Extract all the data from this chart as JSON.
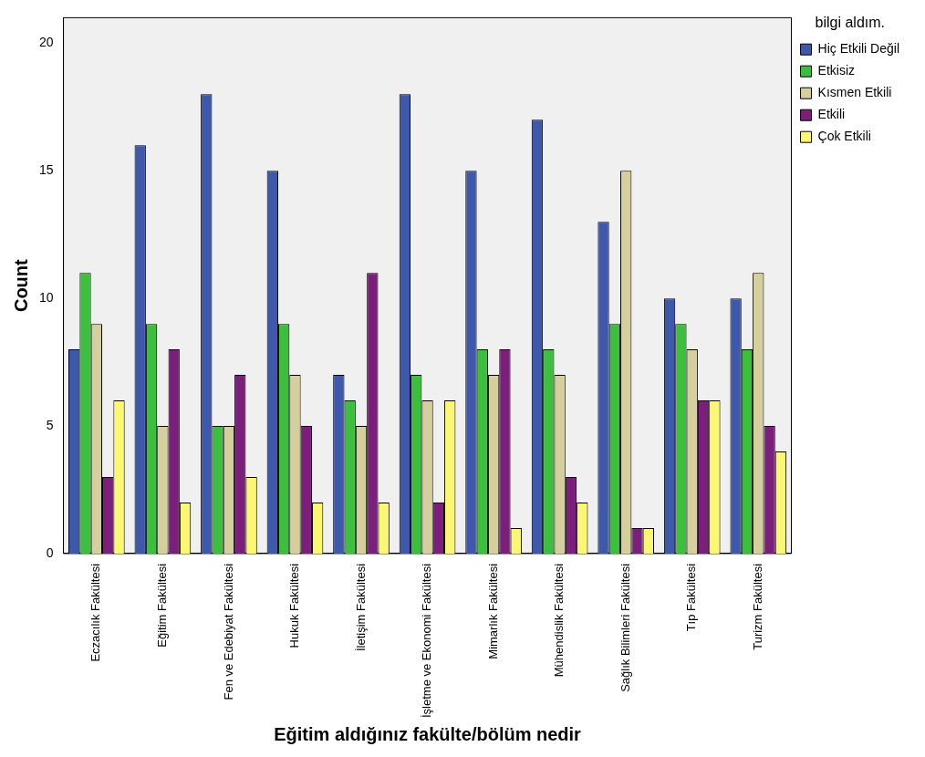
{
  "chart_data": {
    "type": "bar",
    "xlabel": "Eğitim aldığınız fakülte/bölüm nedir",
    "ylabel": "Count",
    "legend_title": "bilgi aldım.",
    "categories": [
      "Eczacılık Fakültesi",
      "Eğitim Fakültesi",
      "Fen ve Edebiyat Fakültesi",
      "Hukuk Fakültesi",
      "İletişim Fakültesi",
      "İşletme ve Ekonomi Fakültesi",
      "Mimarlık Fakültesi",
      "Mühendislik Fakültesi",
      "Sağlık Bilimleri Fakültesi",
      "Tıp Fakültesi",
      "Turizm Fakültesi"
    ],
    "series": [
      {
        "name": "Hiç Etkili Değil",
        "color": "#3e58ac",
        "values": [
          8,
          16,
          18,
          15,
          7,
          18,
          15,
          17,
          13,
          10,
          10
        ]
      },
      {
        "name": "Etkisiz",
        "color": "#3cbf3c",
        "values": [
          11,
          9,
          5,
          9,
          6,
          7,
          8,
          8,
          9,
          9,
          8
        ]
      },
      {
        "name": "Kısmen Etkili",
        "color": "#d4cf9c",
        "values": [
          9,
          5,
          5,
          7,
          5,
          6,
          7,
          7,
          15,
          8,
          11
        ]
      },
      {
        "name": "Etkili",
        "color": "#7c1f7c",
        "values": [
          3,
          8,
          7,
          5,
          11,
          2,
          8,
          3,
          1,
          6,
          5
        ]
      },
      {
        "name": "Çok Etkili",
        "color": "#fbf772",
        "values": [
          6,
          2,
          3,
          2,
          2,
          6,
          1,
          2,
          1,
          6,
          4
        ]
      }
    ],
    "ylim": [
      0,
      21
    ],
    "yticks": [
      0,
      5,
      10,
      15,
      20
    ],
    "grid": false,
    "legend": "top right"
  }
}
